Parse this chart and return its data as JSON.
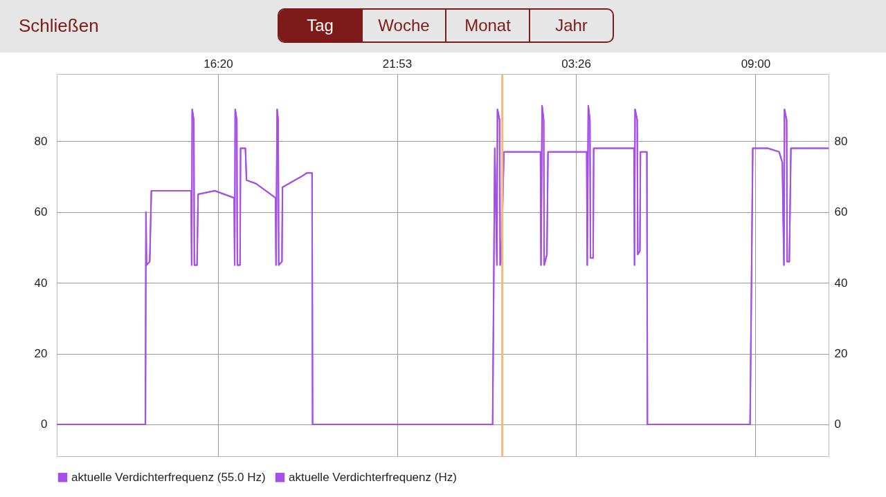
{
  "chart_data": {
    "type": "line",
    "annotations": [
      "Schließen",
      "Tag",
      "Woche",
      "Monat",
      "Jahr"
    ],
    "x": [
      "--01-01T11:20",
      "--01-01T14:05",
      "--01-01T14:06",
      "--01-01T14:07",
      "--01-01T14:13",
      "--01-01T14:16",
      "--01-01T15:30",
      "--01-01T15:31",
      "--01-01T15:32",
      "--01-01T15:35",
      "--01-01T15:36",
      "--01-01T15:41",
      "--01-01T15:43",
      "--01-01T16:14",
      "--01-01T16:50",
      "--01-01T16:51",
      "--01-01T16:52",
      "--01-01T16:55",
      "--01-01T16:56",
      "--01-01T17:01",
      "--01-01T17:02",
      "--01-01T17:11",
      "--01-01T17:13",
      "--01-01T17:31",
      "--01-01T18:07",
      "--01-01T18:08",
      "--01-01T18:10",
      "--01-01T18:12",
      "--01-01T18:13",
      "--01-01T18:19",
      "--01-01T18:20",
      "--01-01T18:55",
      "--01-01T19:05",
      "--01-01T19:15",
      "--01-01T19:16",
      "--01-02T00:51",
      "--01-02T00:55",
      "--01-02T00:59",
      "--01-02T01:00",
      "--01-02T01:04",
      "--01-02T01:05",
      "--01-02T01:07",
      "--01-02T01:12",
      "--01-02T02:20",
      "--01-02T02:21",
      "--01-02T02:23",
      "--01-02T02:26",
      "--01-02T02:27",
      "--01-02T02:32",
      "--01-02T02:34",
      "--01-02T03:46",
      "--01-02T03:47",
      "--01-02T03:49",
      "--01-02T03:52",
      "--01-02T03:53",
      "--01-02T03:58",
      "--01-02T03:59",
      "--01-02T05:14",
      "--01-02T05:15",
      "--01-02T05:16",
      "--01-02T05:20",
      "--01-02T05:21",
      "--01-02T05:25",
      "--01-02T05:26",
      "--01-02T05:38",
      "--01-02T05:39",
      "--01-02T08:50",
      "--01-02T08:53",
      "--01-02T08:55",
      "--01-02T09:23",
      "--01-02T09:44",
      "--01-02T09:50",
      "--01-02T09:53",
      "--01-02T09:54",
      "--01-02T09:58",
      "--01-02T09:59",
      "--01-02T10:03",
      "--01-02T10:06",
      "--01-02T11:16"
    ],
    "series": [
      {
        "name": "aktuelle Verdichterfrequenz (55.0 Hz)",
        "color": "#a64ee8",
        "values": [
          0,
          0,
          60,
          45,
          46,
          66,
          66,
          45,
          89,
          86,
          45,
          45,
          65,
          66,
          64,
          45,
          89,
          86,
          45,
          45,
          78,
          78,
          69,
          68,
          64,
          45,
          89,
          86,
          45,
          46,
          67,
          70,
          71,
          71,
          0,
          0,
          78,
          45,
          89,
          86,
          45,
          46,
          77,
          77,
          45,
          90,
          86,
          45,
          48,
          77,
          77,
          45,
          90,
          86,
          47,
          47,
          78,
          78,
          45,
          89,
          86,
          48,
          49,
          77,
          77,
          0,
          0,
          46,
          78,
          78,
          77,
          74,
          45,
          89,
          86,
          46,
          46,
          78,
          78
        ]
      },
      {
        "name": "aktuelle Verdichterfrequenz (Hz)",
        "color": "#a64ee8",
        "values": [
          0,
          0,
          60,
          45,
          46,
          66,
          66,
          45,
          89,
          86,
          45,
          45,
          65,
          66,
          64,
          45,
          89,
          86,
          45,
          45,
          78,
          78,
          69,
          68,
          64,
          45,
          89,
          86,
          45,
          46,
          67,
          70,
          71,
          71,
          0,
          0,
          78,
          45,
          89,
          86,
          45,
          46,
          77,
          77,
          45,
          90,
          86,
          45,
          48,
          77,
          77,
          45,
          90,
          86,
          47,
          47,
          78,
          78,
          45,
          89,
          86,
          48,
          49,
          77,
          77,
          0,
          0,
          46,
          78,
          78,
          77,
          74,
          45,
          89,
          86,
          46,
          46,
          78,
          78
        ]
      }
    ],
    "xlim": [
      "--01-01T11:20",
      "--01-02T11:16"
    ],
    "xticks": [
      {
        "value": "--01-01T16:20",
        "label": "16:20"
      },
      {
        "value": "--01-01T21:53",
        "label": "21:53"
      },
      {
        "value": "--01-02T03:26",
        "label": "03:26"
      },
      {
        "value": "--01-02T09:00",
        "label": "09:00"
      }
    ],
    "ylim": [
      -9,
      99
    ],
    "yticks": [
      0,
      20,
      40,
      60,
      80
    ],
    "y2lim": [
      -9,
      99
    ],
    "y2ticks": [
      0,
      20,
      40,
      60,
      80
    ],
    "ref_lines": [
      {
        "axis": "x",
        "value": "--01-02T01:09",
        "color": "#f5b87a"
      }
    ],
    "grid": true,
    "legend": "bottom left",
    "marker": "none",
    "line_style": "solid"
  }
}
